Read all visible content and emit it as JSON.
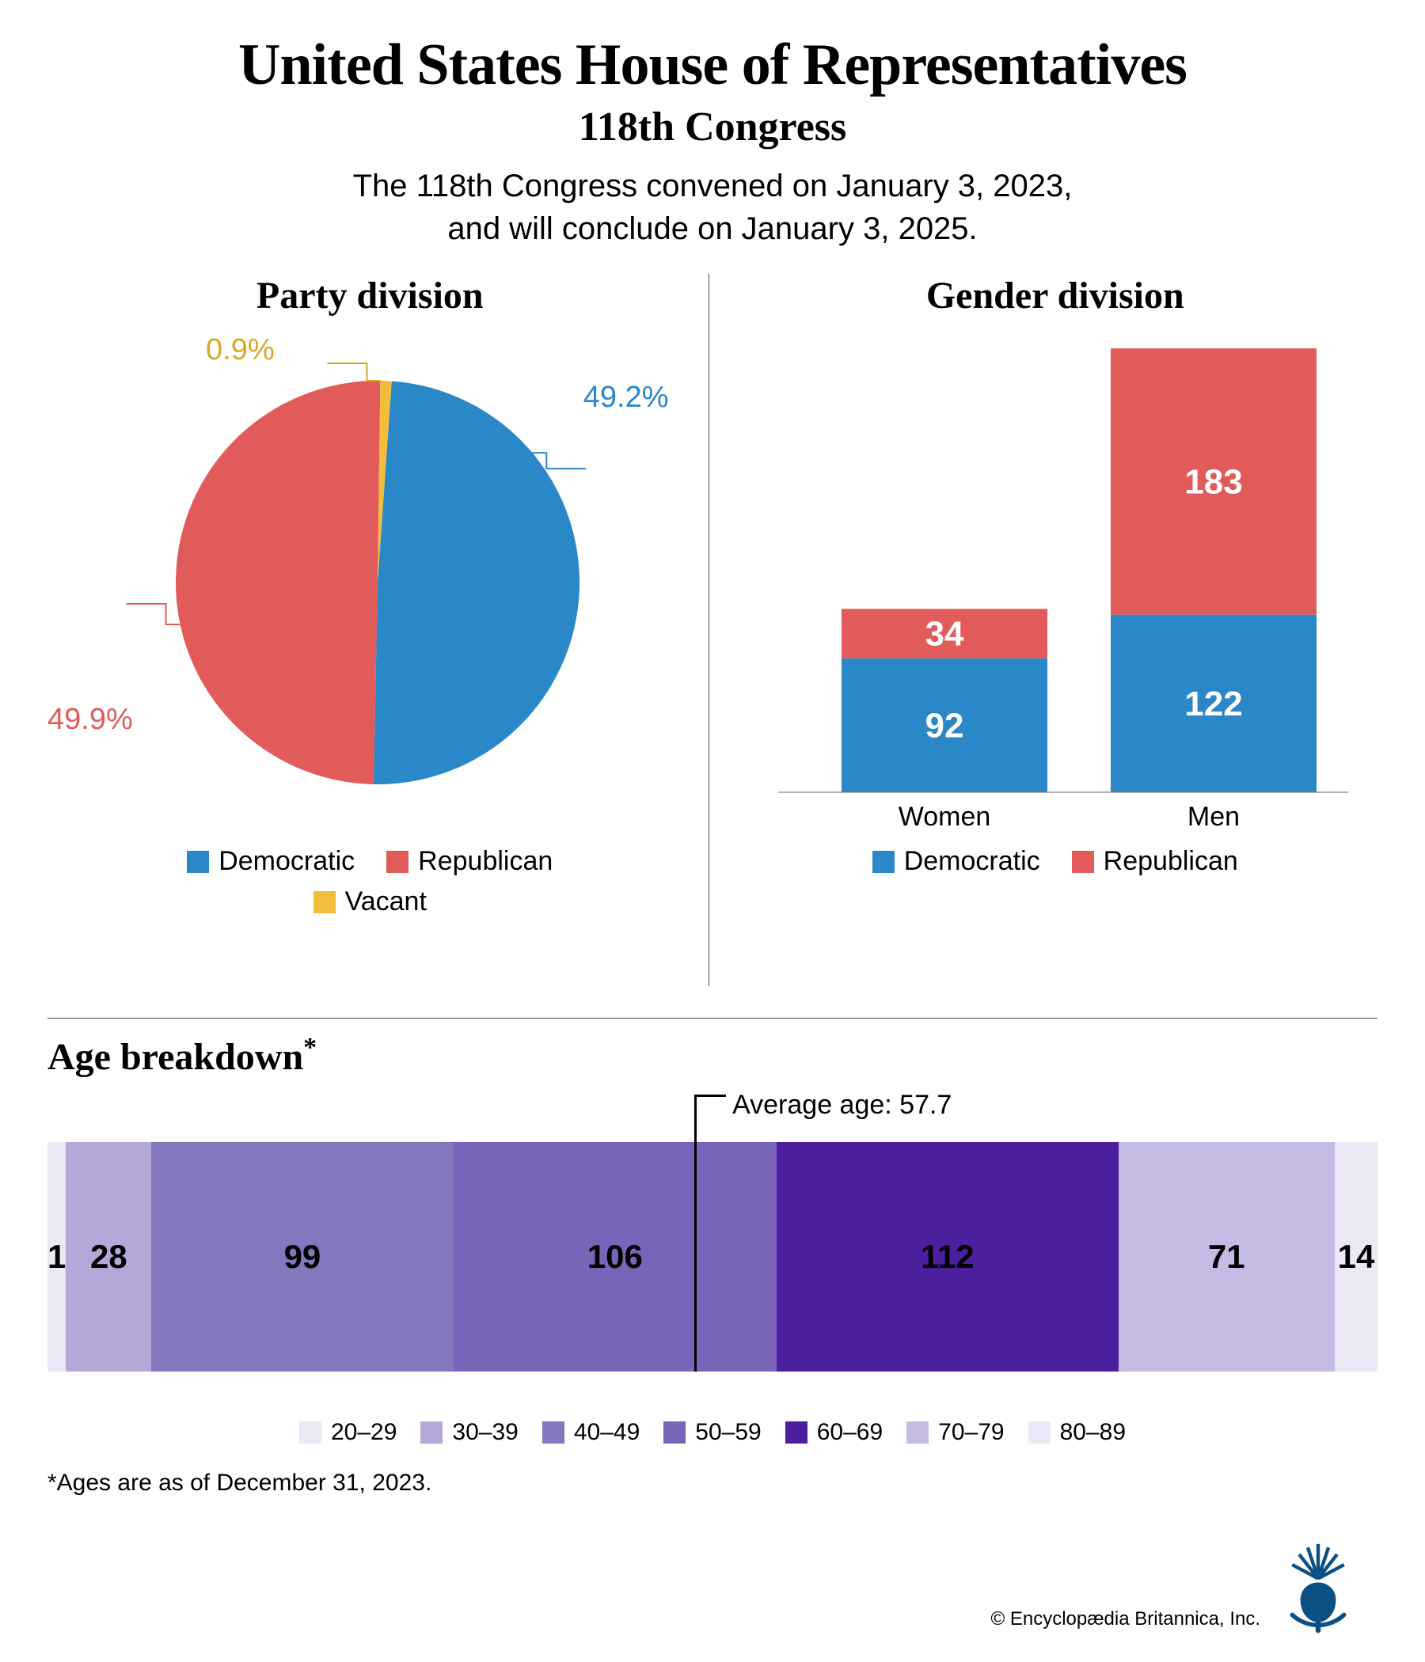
{
  "header": {
    "title": "United States House of Representatives",
    "subtitle": "118th Congress",
    "description_line1": "The 118th Congress convened on January 3, 2023,",
    "description_line2": "and will conclude on January 3, 2025."
  },
  "colors": {
    "democratic": "#2a87c8",
    "republican": "#e25b5b",
    "vacant": "#f0be3a",
    "text": "#000000"
  },
  "party_division": {
    "title": "Party division",
    "type": "pie",
    "slices": [
      {
        "label": "Democratic",
        "pct": 49.2,
        "color": "#2a87c8",
        "display": "49.2%",
        "label_color": "#2a87c8"
      },
      {
        "label": "Republican",
        "pct": 49.9,
        "color": "#e25b5b",
        "display": "49.9%",
        "label_color": "#e25b5b"
      },
      {
        "label": "Vacant",
        "pct": 0.9,
        "color": "#f0be3a",
        "display": "0.9%",
        "label_color": "#d8a926"
      }
    ],
    "legend": [
      {
        "label": "Democratic",
        "color": "#2a87c8"
      },
      {
        "label": "Republican",
        "color": "#e25b5b"
      },
      {
        "label": "Vacant",
        "color": "#f0be3a"
      }
    ]
  },
  "gender_division": {
    "title": "Gender division",
    "type": "stacked-bar",
    "ymax": 310,
    "categories": [
      "Women",
      "Men"
    ],
    "series": [
      {
        "name": "Democratic",
        "color": "#2a87c8",
        "values": [
          92,
          122
        ]
      },
      {
        "name": "Republican",
        "color": "#e25b5b",
        "values": [
          34,
          183
        ]
      }
    ],
    "legend": [
      {
        "label": "Democratic",
        "color": "#2a87c8"
      },
      {
        "label": "Republican",
        "color": "#e25b5b"
      }
    ]
  },
  "age_breakdown": {
    "title": "Age breakdown",
    "title_mark": "*",
    "average_label": "Average age: 57.7",
    "average_value": 57.7,
    "type": "segmented-bar",
    "segments": [
      {
        "range": "20–29",
        "value": 1,
        "color": "#ece8f5",
        "text_color": "#000000"
      },
      {
        "range": "30–39",
        "value": 28,
        "color": "#b5a8d9",
        "text_color": "#000000"
      },
      {
        "range": "40–49",
        "value": 99,
        "color": "#8577bd",
        "text_color": "#000000"
      },
      {
        "range": "50–59",
        "value": 106,
        "color": "#7864b8",
        "text_color": "#000000"
      },
      {
        "range": "60–69",
        "value": 112,
        "color": "#4c1f9e",
        "text_color": "#000000"
      },
      {
        "range": "70–79",
        "value": 71,
        "color": "#c6bbe4",
        "text_color": "#000000"
      },
      {
        "range": "80–89",
        "value": 14,
        "color": "#ece8f5",
        "text_color": "#000000"
      }
    ],
    "legend": [
      {
        "label": "20–29",
        "color": "#ece8f5"
      },
      {
        "label": "30–39",
        "color": "#b5a8d9"
      },
      {
        "label": "40–49",
        "color": "#8577bd"
      },
      {
        "label": "50–59",
        "color": "#7864b8"
      },
      {
        "label": "60–69",
        "color": "#4c1f9e"
      },
      {
        "label": "70–79",
        "color": "#c6bbe4"
      },
      {
        "label": "80–89",
        "color": "#ece8f5"
      }
    ],
    "footnote": "*Ages are as of December 31, 2023."
  },
  "credit": {
    "text": "© Encyclopædia Britannica, Inc.",
    "logo_color": "#0b5084"
  }
}
